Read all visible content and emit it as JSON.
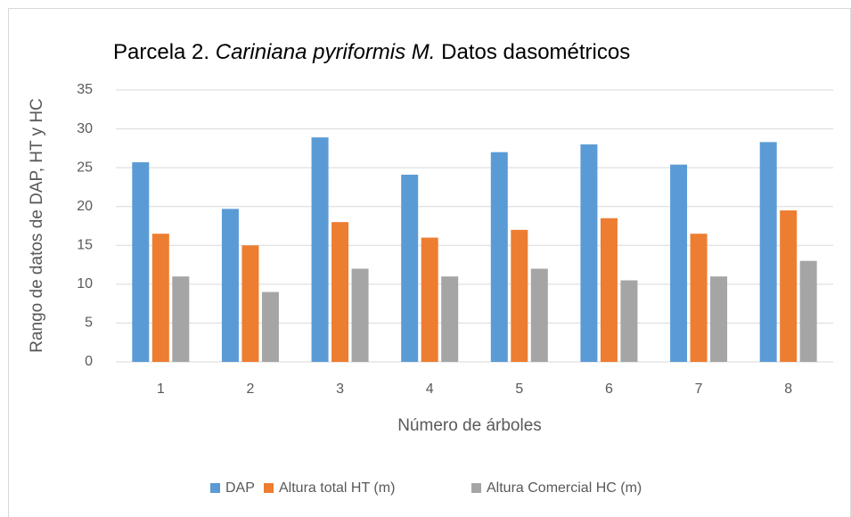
{
  "chart_data": {
    "type": "bar",
    "title": [
      "Parcela 2.",
      "Cariniana pyriformis M.",
      "Datos dasométricos"
    ],
    "xlabel": "Número de árboles",
    "ylabel": "Rango de datos de DAP, HT y HC",
    "categories": [
      "1",
      "2",
      "3",
      "4",
      "5",
      "6",
      "7",
      "8"
    ],
    "series": [
      {
        "name": "DAP",
        "color": "#5b9bd5",
        "values": [
          25.7,
          19.7,
          28.9,
          24.1,
          27,
          28,
          25.4,
          28.3
        ]
      },
      {
        "name": "Altura total HT (m)",
        "color": "#ed7d31",
        "values": [
          16.5,
          15,
          18,
          16,
          17,
          18.5,
          16.5,
          19.5
        ]
      },
      {
        "name": "Altura Comercial HC (m)",
        "color": "#a5a5a5",
        "values": [
          11,
          9,
          12,
          11,
          12,
          10.5,
          11,
          13
        ]
      }
    ],
    "ylim": [
      0,
      35
    ],
    "yticks": [
      0,
      5,
      10,
      15,
      20,
      25,
      30,
      35
    ],
    "grid": true,
    "legend": "bottom"
  }
}
